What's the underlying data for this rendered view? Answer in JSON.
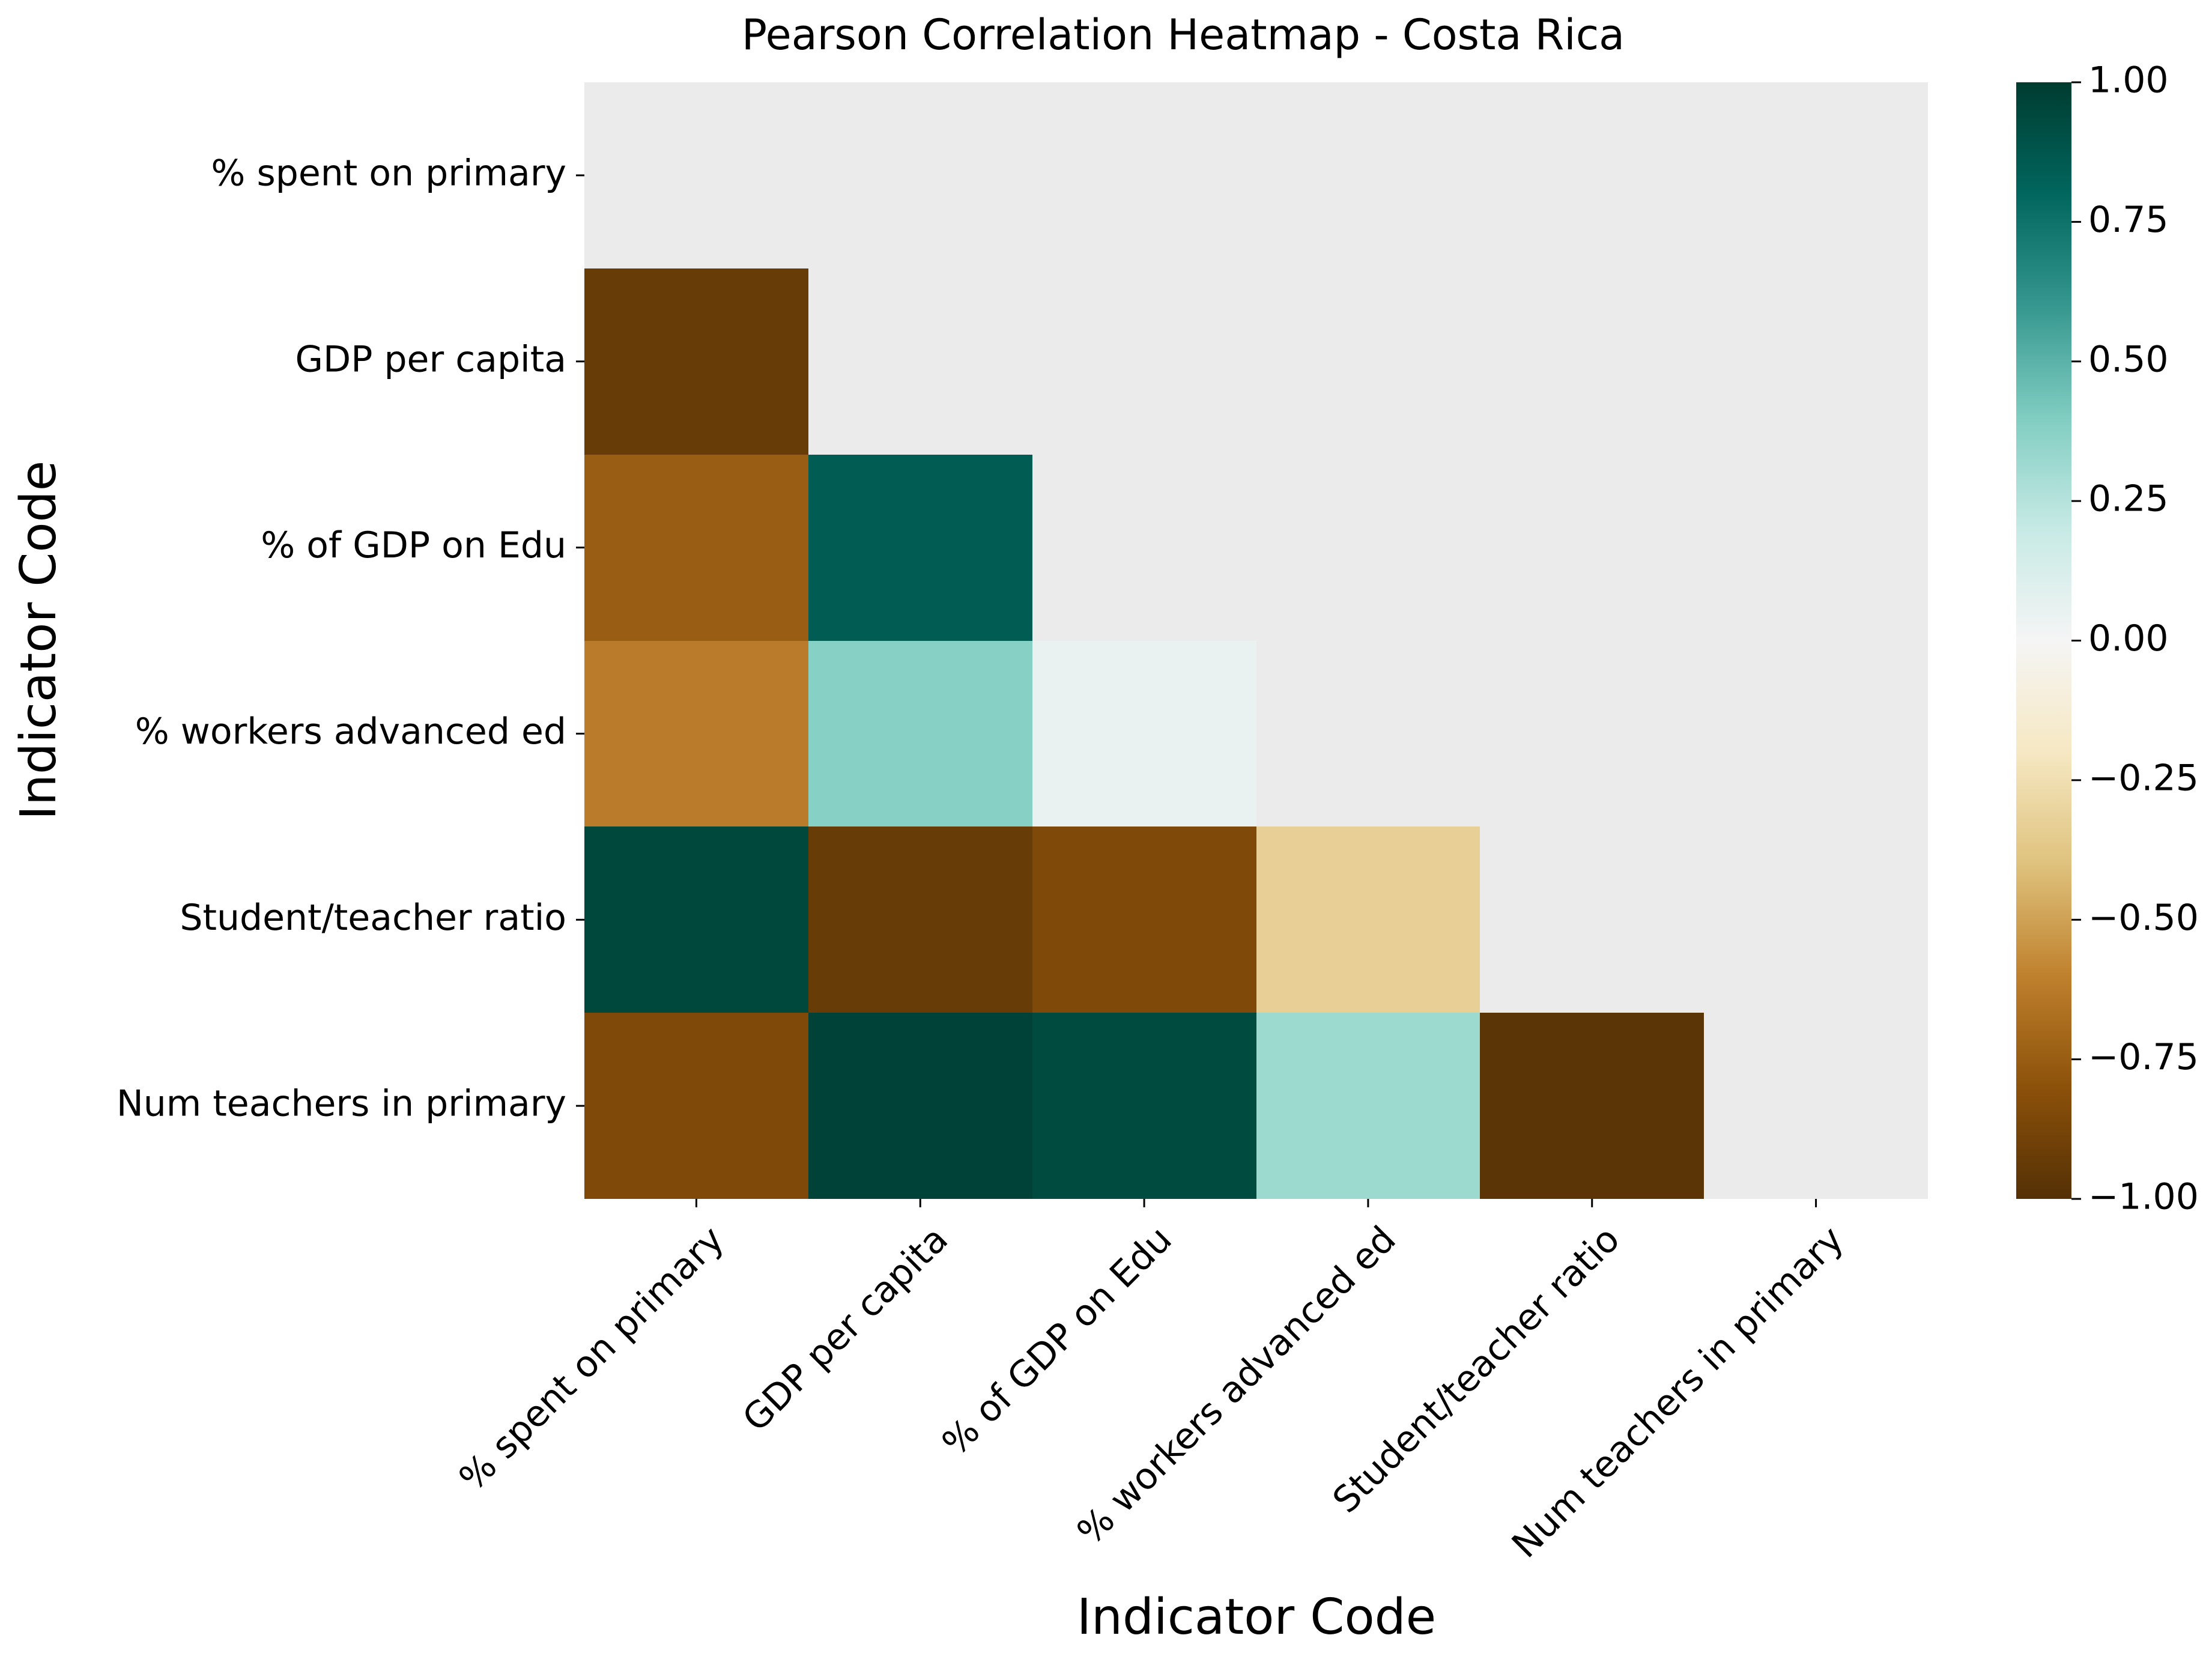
{
  "chart_data": {
    "type": "heatmap",
    "title": "Pearson Correlation Heatmap - Costa Rica",
    "xlabel": "Indicator Code",
    "ylabel": "Indicator Code",
    "x_categories": [
      "% spent on primary",
      "GDP per capita",
      "% of GDP on Edu",
      "% workers advanced ed",
      "Student/teacher ratio",
      "Num teachers in primary"
    ],
    "y_categories": [
      "% spent on primary",
      "GDP per capita",
      "% of GDP on Edu",
      "% workers advanced ed",
      "Student/teacher ratio",
      "Num teachers in primary"
    ],
    "mask": "upper triangle including diagonal",
    "values": [
      [
        null,
        null,
        null,
        null,
        null,
        null
      ],
      [
        -0.93,
        null,
        null,
        null,
        null,
        null
      ],
      [
        -0.75,
        0.85,
        null,
        null,
        null,
        null
      ],
      [
        -0.62,
        0.38,
        0.05,
        null,
        null,
        null
      ],
      [
        0.95,
        -0.93,
        -0.85,
        -0.33,
        null,
        null
      ],
      [
        -0.85,
        0.97,
        0.93,
        0.32,
        -0.97,
        null
      ]
    ],
    "colormap": "BrBG",
    "vmin": -1.0,
    "vmax": 1.0,
    "colorbar_ticks": [
      "1.00",
      "0.75",
      "0.50",
      "0.25",
      "0.00",
      "−0.25",
      "−0.50",
      "−0.75",
      "−1.00"
    ],
    "grid": false,
    "colors": {
      "background": "#ebebeb",
      "brbg_stops": [
        "#543005",
        "#8c510a",
        "#bf812d",
        "#dfc27d",
        "#f6e8c3",
        "#f5f5f5",
        "#c7eae5",
        "#80cdc1",
        "#35978f",
        "#01665e",
        "#003c30"
      ]
    }
  }
}
